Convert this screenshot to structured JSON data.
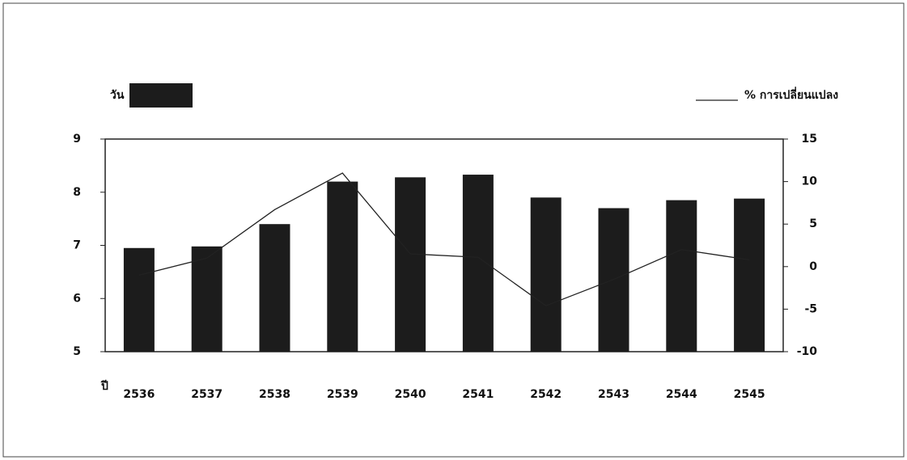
{
  "chart_data": {
    "type": "bar_line",
    "x_label": "ปี",
    "categories": [
      "2536",
      "2537",
      "2538",
      "2539",
      "2540",
      "2541",
      "2542",
      "2543",
      "2544",
      "2545"
    ],
    "series": [
      {
        "name": "วัน",
        "type": "bar",
        "color": "#1c1c1c",
        "values": [
          6.95,
          6.98,
          7.4,
          8.2,
          8.28,
          8.33,
          7.9,
          7.7,
          7.85,
          7.88
        ]
      },
      {
        "name": "% การเปลี่ยนแปลง",
        "type": "line",
        "axis": "y2",
        "color": "#222222",
        "values": [
          -1,
          1,
          6.7,
          11,
          1.5,
          1.1,
          -4.6,
          -1.5,
          2,
          0.8
        ]
      }
    ],
    "ylim": [
      5,
      9
    ],
    "yticks": [
      5,
      6,
      7,
      8,
      9
    ],
    "y2lim": [
      -10,
      15
    ],
    "y2ticks": [
      -10,
      -5,
      0,
      5,
      10,
      15
    ]
  }
}
